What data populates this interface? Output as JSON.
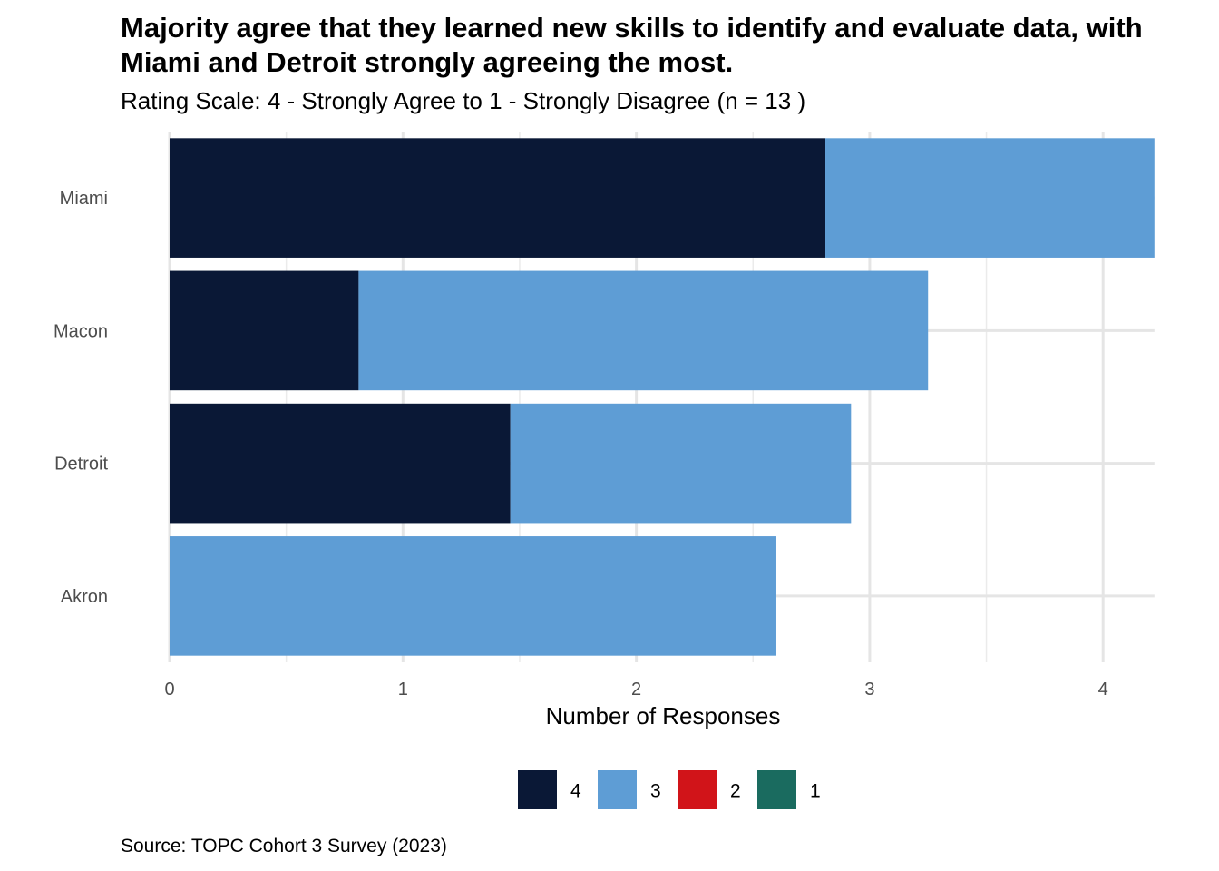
{
  "chart_data": {
    "type": "bar",
    "orientation": "horizontal",
    "stacked": true,
    "title": "Majority agree that they learned new skills to identify and evaluate data, with Miami and Detroit strongly agreeing the most.",
    "subtitle": "Rating Scale: 4 - Strongly Agree to 1 - Strongly Disagree (n = 13 )",
    "caption": "Source: TOPC Cohort 3 Survey (2023)",
    "xlabel": "Number of Responses",
    "ylabel": "",
    "xlim": [
      0,
      4.22
    ],
    "xticks": [
      0,
      1,
      2,
      3,
      4
    ],
    "grid": true,
    "legend_position": "bottom",
    "categories": [
      "Miami",
      "Macon",
      "Detroit",
      "Akron"
    ],
    "series": [
      {
        "name": "4",
        "color": "#0a1836",
        "values": [
          2.81,
          0.81,
          1.46,
          0
        ]
      },
      {
        "name": "3",
        "color": "#5e9dd5",
        "values": [
          1.41,
          2.44,
          1.46,
          2.6
        ]
      },
      {
        "name": "2",
        "color": "#d11419",
        "values": [
          0,
          0,
          0,
          0
        ]
      },
      {
        "name": "1",
        "color": "#1a6b5f",
        "values": [
          0,
          0,
          0,
          0
        ]
      }
    ]
  }
}
